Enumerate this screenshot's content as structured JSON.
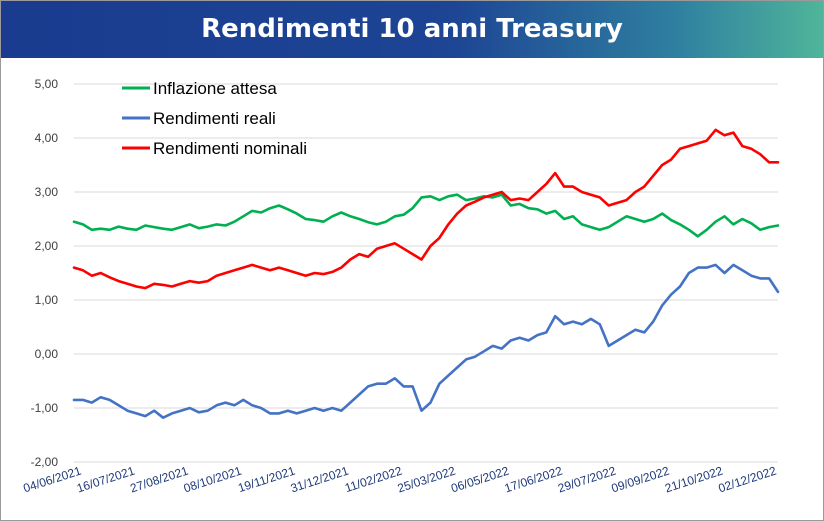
{
  "title": "Rendimenti 10 anni Treasury",
  "chart_data": {
    "type": "line",
    "title": "Rendimenti 10 anni Treasury",
    "xlabel": "",
    "ylabel": "",
    "ylim": [
      -2,
      5
    ],
    "grid": "horizontal",
    "legend_position": "top-left",
    "yticks": [
      "-2,00",
      "-1,00",
      "0,00",
      "1,00",
      "2,00",
      "3,00",
      "4,00",
      "5,00"
    ],
    "ytick_values": [
      -2,
      -1,
      0,
      1,
      2,
      3,
      4,
      5
    ],
    "xticks": [
      "04/06/2021",
      "16/07/2021",
      "27/08/2021",
      "08/10/2021",
      "19/11/2021",
      "31/12/2021",
      "11/02/2022",
      "25/03/2022",
      "06/05/2022",
      "17/06/2022",
      "29/07/2022",
      "09/09/2022",
      "21/10/2022",
      "02/12/2022"
    ],
    "x": [
      "04/06/2021",
      "11/06/2021",
      "18/06/2021",
      "25/06/2021",
      "02/07/2021",
      "09/07/2021",
      "16/07/2021",
      "23/07/2021",
      "30/07/2021",
      "06/08/2021",
      "13/08/2021",
      "20/08/2021",
      "27/08/2021",
      "03/09/2021",
      "10/09/2021",
      "17/09/2021",
      "24/09/2021",
      "01/10/2021",
      "08/10/2021",
      "15/10/2021",
      "22/10/2021",
      "29/10/2021",
      "05/11/2021",
      "12/11/2021",
      "19/11/2021",
      "26/11/2021",
      "03/12/2021",
      "10/12/2021",
      "17/12/2021",
      "24/12/2021",
      "31/12/2021",
      "07/01/2022",
      "14/01/2022",
      "21/01/2022",
      "28/01/2022",
      "04/02/2022",
      "11/02/2022",
      "18/02/2022",
      "25/02/2022",
      "04/03/2022",
      "11/03/2022",
      "18/03/2022",
      "25/03/2022",
      "01/04/2022",
      "08/04/2022",
      "15/04/2022",
      "22/04/2022",
      "29/04/2022",
      "06/05/2022",
      "13/05/2022",
      "20/05/2022",
      "27/05/2022",
      "03/06/2022",
      "10/06/2022",
      "17/06/2022",
      "24/06/2022",
      "01/07/2022",
      "08/07/2022",
      "15/07/2022",
      "22/07/2022",
      "29/07/2022",
      "05/08/2022",
      "12/08/2022",
      "19/08/2022",
      "26/08/2022",
      "02/09/2022",
      "09/09/2022",
      "16/09/2022",
      "23/09/2022",
      "30/09/2022",
      "07/10/2022",
      "14/10/2022",
      "21/10/2022",
      "28/10/2022",
      "04/11/2022",
      "11/11/2022",
      "18/11/2022",
      "25/11/2022",
      "02/12/2022",
      "09/12/2022"
    ],
    "series": [
      {
        "name": "Inflazione attesa",
        "color": "#00b050",
        "values": [
          2.45,
          2.4,
          2.3,
          2.32,
          2.3,
          2.36,
          2.32,
          2.3,
          2.38,
          2.35,
          2.32,
          2.3,
          2.35,
          2.4,
          2.33,
          2.36,
          2.4,
          2.38,
          2.45,
          2.55,
          2.65,
          2.62,
          2.7,
          2.75,
          2.68,
          2.6,
          2.5,
          2.48,
          2.45,
          2.55,
          2.62,
          2.55,
          2.5,
          2.44,
          2.4,
          2.45,
          2.55,
          2.58,
          2.7,
          2.9,
          2.92,
          2.85,
          2.92,
          2.95,
          2.85,
          2.88,
          2.92,
          2.9,
          2.95,
          2.75,
          2.78,
          2.7,
          2.68,
          2.6,
          2.65,
          2.5,
          2.55,
          2.4,
          2.35,
          2.3,
          2.35,
          2.45,
          2.55,
          2.5,
          2.45,
          2.5,
          2.6,
          2.48,
          2.4,
          2.3,
          2.18,
          2.3,
          2.45,
          2.55,
          2.4,
          2.5,
          2.42,
          2.3,
          2.35,
          2.38
        ]
      },
      {
        "name": "Rendimenti reali",
        "color": "#4472c4",
        "values": [
          -0.85,
          -0.85,
          -0.9,
          -0.8,
          -0.85,
          -0.95,
          -1.05,
          -1.1,
          -1.15,
          -1.05,
          -1.18,
          -1.1,
          -1.05,
          -1.0,
          -1.08,
          -1.05,
          -0.95,
          -0.9,
          -0.95,
          -0.85,
          -0.95,
          -1.0,
          -1.1,
          -1.1,
          -1.05,
          -1.1,
          -1.05,
          -1.0,
          -1.05,
          -1.0,
          -1.05,
          -0.9,
          -0.75,
          -0.6,
          -0.55,
          -0.55,
          -0.45,
          -0.6,
          -0.6,
          -1.05,
          -0.9,
          -0.55,
          -0.4,
          -0.25,
          -0.1,
          -0.05,
          0.05,
          0.15,
          0.1,
          0.25,
          0.3,
          0.25,
          0.35,
          0.4,
          0.7,
          0.55,
          0.6,
          0.55,
          0.65,
          0.55,
          0.15,
          0.25,
          0.35,
          0.45,
          0.4,
          0.6,
          0.9,
          1.1,
          1.25,
          1.5,
          1.6,
          1.6,
          1.65,
          1.5,
          1.65,
          1.55,
          1.45,
          1.4,
          1.4,
          1.15
        ]
      },
      {
        "name": "Rendimenti nominali",
        "color": "#ff0000",
        "values": [
          1.6,
          1.55,
          1.45,
          1.5,
          1.42,
          1.35,
          1.3,
          1.25,
          1.22,
          1.3,
          1.28,
          1.25,
          1.3,
          1.35,
          1.32,
          1.35,
          1.45,
          1.5,
          1.55,
          1.6,
          1.65,
          1.6,
          1.55,
          1.6,
          1.55,
          1.5,
          1.45,
          1.5,
          1.48,
          1.52,
          1.6,
          1.75,
          1.85,
          1.8,
          1.95,
          2.0,
          2.05,
          1.95,
          1.85,
          1.75,
          2.0,
          2.15,
          2.4,
          2.6,
          2.75,
          2.82,
          2.9,
          2.95,
          3.0,
          2.85,
          2.88,
          2.85,
          3.0,
          3.15,
          3.35,
          3.1,
          3.1,
          3.0,
          2.95,
          2.9,
          2.75,
          2.8,
          2.85,
          3.0,
          3.1,
          3.3,
          3.5,
          3.6,
          3.8,
          3.85,
          3.9,
          3.95,
          4.15,
          4.05,
          4.1,
          3.85,
          3.8,
          3.7,
          3.55,
          3.55
        ]
      }
    ]
  }
}
